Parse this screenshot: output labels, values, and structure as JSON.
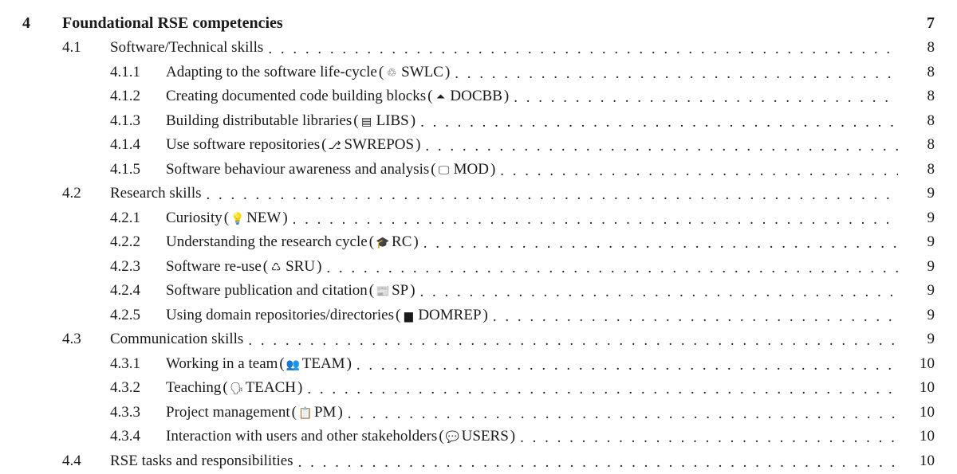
{
  "dots": ". . . . . . . . . . . . . . . . . . . . . . . . . . . . . . . . . . . . . . . . . . . . . . . . . . . . . . . . . . . . . . . . . . . . . . . . . . . . . . . . . . . . . . . . . . . . . . . . . . . . . . . . . . . . . .",
  "chapter": {
    "num": "4",
    "title": "Foundational RSE competencies",
    "page": "7"
  },
  "sections": [
    {
      "num": "4.1",
      "title": "Software/Technical skills",
      "page": "8",
      "subs": [
        {
          "num": "4.1.1",
          "title": "Adapting to the software life-cycle",
          "icon": "cycle-icon",
          "sym": "♲",
          "code": "SWLC",
          "page": "8"
        },
        {
          "num": "4.1.2",
          "title": "Creating documented code building blocks",
          "icon": "tree-icon",
          "sym": "⏶",
          "code": "DOCBB",
          "page": "8"
        },
        {
          "num": "4.1.3",
          "title": "Building distributable libraries",
          "icon": "box-icon",
          "sym": "▤",
          "code": "LIBS",
          "page": "8"
        },
        {
          "num": "4.1.4",
          "title": "Use software repositories",
          "icon": "branch-icon",
          "sym": "⎇",
          "code": "SWREPOS",
          "page": "8"
        },
        {
          "num": "4.1.5",
          "title": "Software behaviour awareness and analysis",
          "icon": "monitor-icon",
          "sym": "🖵",
          "code": "MOD",
          "page": "8"
        }
      ]
    },
    {
      "num": "4.2",
      "title": "Research skills",
      "page": "9",
      "subs": [
        {
          "num": "4.2.1",
          "title": "Curiosity",
          "icon": "bulb-icon",
          "sym": "💡",
          "code": "NEW",
          "page": "9"
        },
        {
          "num": "4.2.2",
          "title": "Understanding the research cycle",
          "icon": "grad-icon",
          "sym": "🎓",
          "code": "RC",
          "page": "9"
        },
        {
          "num": "4.2.3",
          "title": "Software re-use",
          "icon": "recycle-icon",
          "sym": "♺",
          "code": "SRU",
          "page": "9"
        },
        {
          "num": "4.2.4",
          "title": "Software publication and citation",
          "icon": "news-icon",
          "sym": "📰",
          "code": "SP",
          "page": "9"
        },
        {
          "num": "4.2.5",
          "title": "Using domain repositories/directories",
          "icon": "folder-icon",
          "sym": "▆",
          "code": "DOMREP",
          "page": "9"
        }
      ]
    },
    {
      "num": "4.3",
      "title": "Communication skills",
      "page": "9",
      "subs": [
        {
          "num": "4.3.1",
          "title": "Working in a team",
          "icon": "team-icon",
          "sym": "👥",
          "code": "TEAM",
          "page": "10"
        },
        {
          "num": "4.3.2",
          "title": "Teaching",
          "icon": "teach-icon",
          "sym": "🗣",
          "code": "TEACH",
          "page": "10"
        },
        {
          "num": "4.3.3",
          "title": "Project management",
          "icon": "clipboard-icon",
          "sym": "📋",
          "code": "PM",
          "page": "10"
        },
        {
          "num": "4.3.4",
          "title": "Interaction with users and other stakeholders",
          "icon": "chat-icon",
          "sym": "💬",
          "code": "USERS",
          "page": "10"
        }
      ]
    },
    {
      "num": "4.4",
      "title": "RSE tasks and responsibilities",
      "page": "10",
      "subs": []
    }
  ]
}
